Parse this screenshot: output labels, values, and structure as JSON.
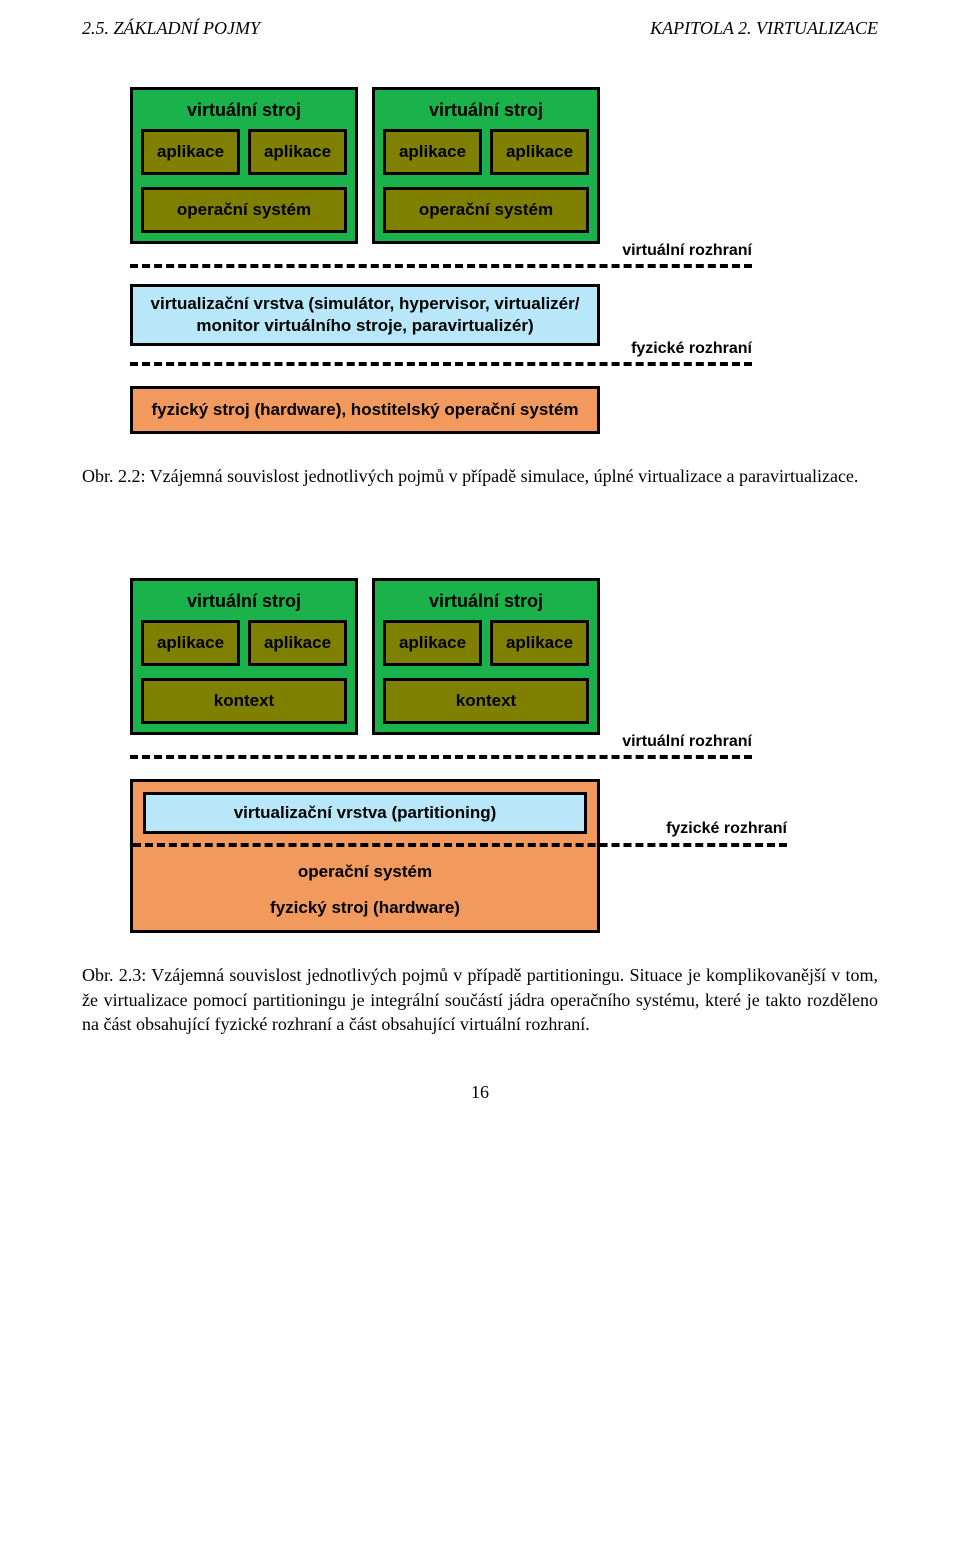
{
  "colors": {
    "vm_bg": "#19b24b",
    "app_bg": "#7f7f00",
    "virt_bg": "#b7e7f9",
    "hw_bg": "#f29a5e",
    "line": "#000000",
    "text": "#000000",
    "page_bg": "#ffffff"
  },
  "header": {
    "left": "2.5. ZÁKLADNÍ POJMY",
    "right": "KAPITOLA 2. VIRTUALIZACE"
  },
  "fig1": {
    "vm_title": "virtuální stroj",
    "app_label": "aplikace",
    "os_label": "operační systém",
    "dashed1_label": "virtuální rozhraní",
    "virt_layer_line1": "virtualizační vrstva (simulátor, hypervisor, virtualizér/",
    "virt_layer_line2": "monitor virtuálního stroje, paravirtualizér)",
    "dashed2_label": "fyzické rozhraní",
    "hw_layer": "fyzický stroj (hardware), hostitelský operační systém",
    "caption": "Obr. 2.2: Vzájemná souvislost jednotlivých pojmů v případě simulace, úplné virtualizace a paravirtualizace."
  },
  "fig2": {
    "vm_title": "virtuální stroj",
    "app_label": "aplikace",
    "kontext_label": "kontext",
    "dashed1_label": "virtuální rozhraní",
    "virt_layer": "virtualizační vrstva (partitioning)",
    "dashed2_label": "fyzické rozhraní",
    "os_label": "operační systém",
    "hw_label": "fyzický stroj (hardware)",
    "caption": "Obr. 2.3: Vzájemná souvislost jednotlivých pojmů v případě partitioningu. Situace je komplikovanější v tom, že virtualizace pomocí partitioningu je integrální součástí jádra operačního systému, které je takto rozděleno na část obsahující fyzické rozhraní a část obsahující virtuální rozhraní."
  },
  "page_number": "16",
  "typography": {
    "body_font": "Times New Roman",
    "label_font": "Arial",
    "header_fontsize_pt": 13,
    "label_fontsize_pt": 13,
    "caption_fontsize_pt": 13
  }
}
